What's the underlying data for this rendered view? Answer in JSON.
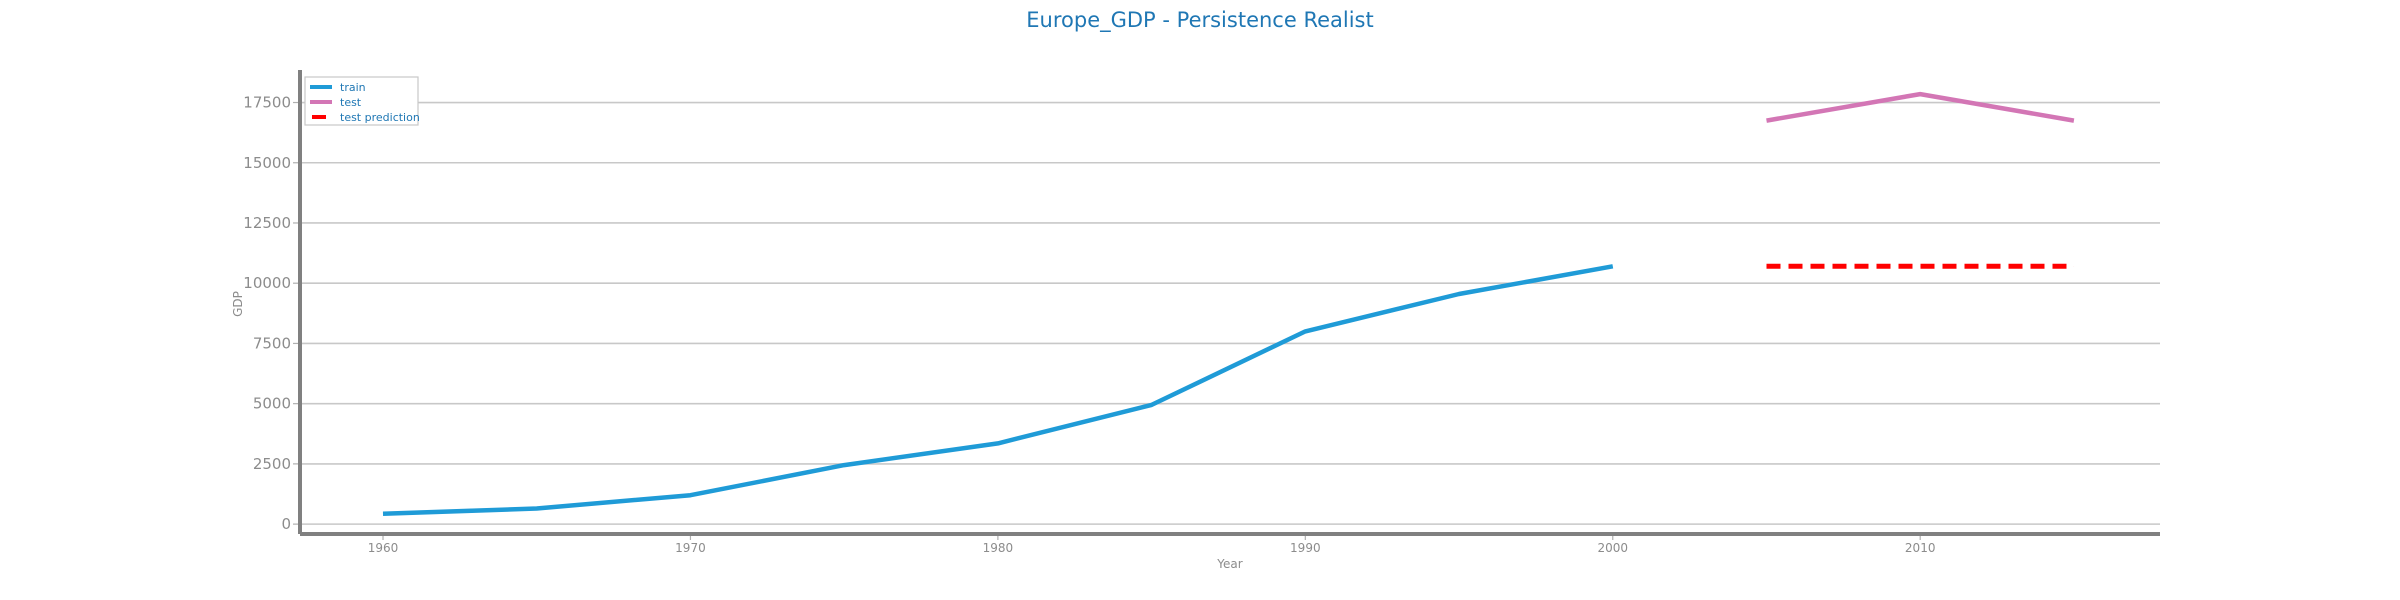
{
  "chart_data": {
    "type": "line",
    "title": "Europe_GDP - Persistence Realist",
    "xlabel": "Year",
    "ylabel": "GDP",
    "xlim": [
      1957.3,
      2017.8
    ],
    "ylim": [
      -410,
      18850
    ],
    "x_ticks": [
      1960,
      1970,
      1980,
      1990,
      2000,
      2010
    ],
    "y_ticks": [
      0,
      2500,
      5000,
      7500,
      10000,
      12500,
      15000,
      17500
    ],
    "grid": "horizontal",
    "legend_position": "top-left",
    "series": [
      {
        "name": "train",
        "color": "#1f9bd7",
        "style": "solid",
        "x": [
          1960,
          1965,
          1970,
          1975,
          1980,
          1985,
          1990,
          1995,
          2000
        ],
        "y": [
          430,
          650,
          1200,
          2450,
          3350,
          4950,
          8000,
          9550,
          10700
        ]
      },
      {
        "name": "test",
        "color": "#d376b5",
        "style": "solid",
        "x": [
          2005,
          2010,
          2015
        ],
        "y": [
          16750,
          17850,
          16750
        ]
      },
      {
        "name": "test prediction",
        "color": "#ff0000",
        "style": "dashed",
        "x": [
          2005,
          2010,
          2015
        ],
        "y": [
          10700,
          10700,
          10700
        ]
      }
    ]
  }
}
